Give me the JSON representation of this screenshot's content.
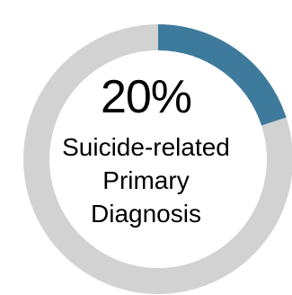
{
  "chart_data": {
    "type": "pie",
    "donut": true,
    "categories": [
      "Suicide-related Primary Diagnosis",
      ""
    ],
    "values": [
      20,
      80
    ],
    "percent_label": "20%",
    "center_label_lines": [
      "Suicide-related",
      "Primary",
      "Diagnosis"
    ],
    "colors": [
      "#3e7a9b",
      "#d2d2d2"
    ]
  }
}
